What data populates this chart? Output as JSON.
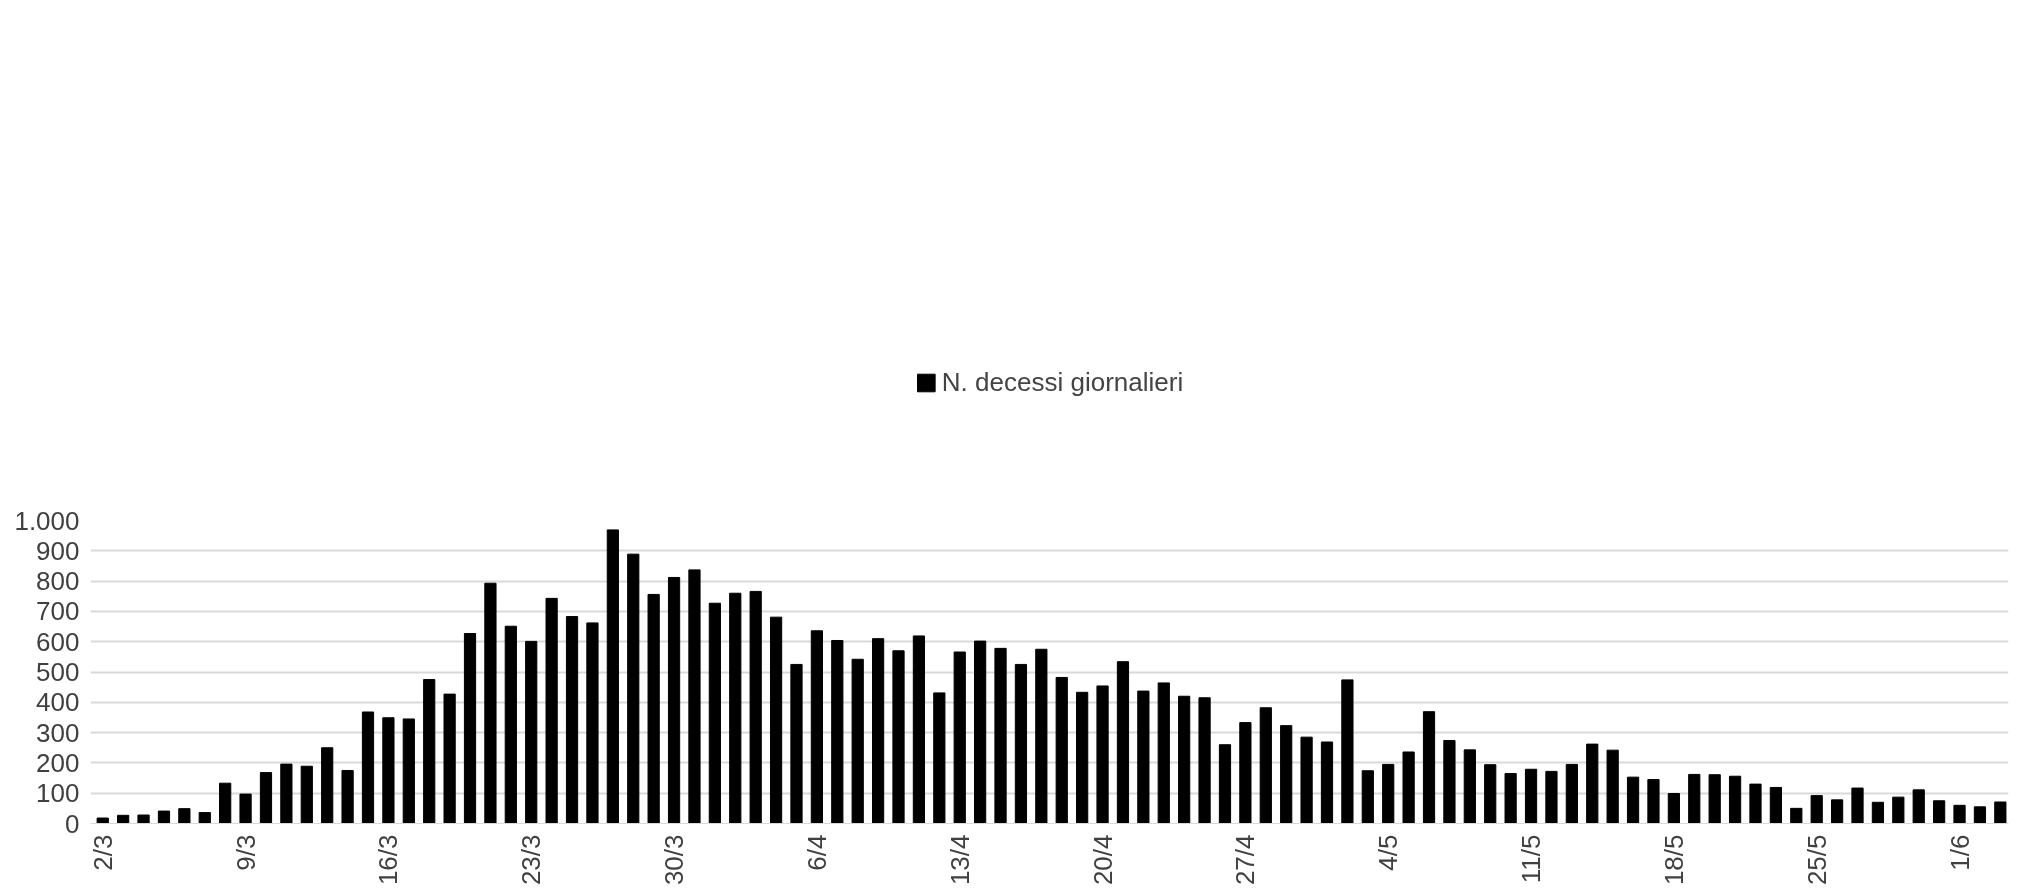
{
  "chart_data": {
    "type": "bar",
    "categories": [
      "2/3",
      null,
      null,
      null,
      null,
      null,
      null,
      "9/3",
      null,
      null,
      null,
      null,
      null,
      null,
      "16/3",
      null,
      null,
      null,
      null,
      null,
      null,
      "23/3",
      null,
      null,
      null,
      null,
      null,
      null,
      "30/3",
      null,
      null,
      null,
      null,
      null,
      null,
      "6/4",
      null,
      null,
      null,
      null,
      null,
      null,
      "13/4",
      null,
      null,
      null,
      null,
      null,
      null,
      "20/4",
      null,
      null,
      null,
      null,
      null,
      null,
      "27/4",
      null,
      null,
      null,
      null,
      null,
      null,
      "4/5",
      null,
      null,
      null,
      null,
      null,
      null,
      "11/5",
      null,
      null,
      null,
      null,
      null,
      null,
      "18/5",
      null,
      null,
      null,
      null,
      null,
      null,
      "25/5",
      null,
      null,
      null,
      null,
      null,
      null,
      "1/6",
      null,
      null
    ],
    "series": [
      {
        "name": "N. decessi giornalieri",
        "color": "#000000",
        "values": [
          18,
          27,
          28,
          41,
          49,
          36,
          133,
          97,
          168,
          196,
          189,
          250,
          175,
          368,
          349,
          345,
          475,
          427,
          627,
          793,
          651,
          601,
          743,
          683,
          662,
          969,
          889,
          756,
          812,
          837,
          727,
          760,
          766,
          681,
          525,
          636,
          604,
          542,
          610,
          570,
          619,
          431,
          566,
          602,
          578,
          525,
          575,
          482,
          433,
          454,
          534,
          437,
          464,
          420,
          415,
          260,
          333,
          382,
          323,
          285,
          269,
          474,
          174,
          195,
          236,
          369,
          274,
          243,
          194,
          165,
          179,
          172,
          195,
          262,
          242,
          153,
          145,
          99,
          162,
          161,
          156,
          130,
          119,
          50,
          92,
          78,
          117,
          70,
          87,
          111,
          75,
          60,
          55,
          71
        ]
      }
    ],
    "ylim": [
      0,
      1000
    ],
    "yticks": [
      0,
      100,
      200,
      300,
      400,
      500,
      600,
      700,
      800,
      900,
      {
        "value": 1000,
        "label": "1.000"
      }
    ],
    "grid": "y",
    "legend": "top"
  }
}
